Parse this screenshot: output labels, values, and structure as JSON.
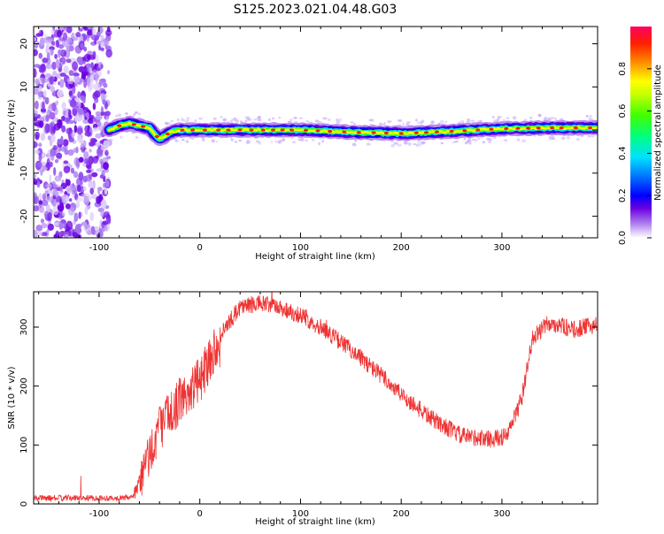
{
  "page_title": "S125.2023.021.04.48.G03",
  "chart_data": [
    {
      "type": "heatmap",
      "xlabel": "Height of straight line (km)",
      "ylabel": "Frequency (Hz)",
      "xlim": [
        -165,
        395
      ],
      "ylim": [
        -25,
        24
      ],
      "x_ticks": [
        -100,
        0,
        100,
        200,
        300
      ],
      "y_ticks": [
        -20,
        -10,
        0,
        10,
        20
      ],
      "colorbar": {
        "label": "Normalized spectral amplitude",
        "range": [
          0,
          1
        ],
        "ticks": [
          "0.0",
          "0.2",
          "0.4",
          "0.6",
          "0.8"
        ],
        "colormap": "rainbow"
      },
      "noise_region": {
        "x_from": -165,
        "x_to": -90,
        "description_level": "low amplitude scattered"
      },
      "ridge": {
        "x": [
          -90,
          -80,
          -70,
          -60,
          -50,
          -45,
          -40,
          -35,
          -30,
          -20,
          0,
          50,
          100,
          150,
          200,
          250,
          300,
          350,
          395
        ],
        "freq": [
          0,
          1,
          1.5,
          1,
          0.5,
          -1,
          -2,
          -1.5,
          -0.5,
          0,
          0,
          0,
          0,
          -0.5,
          -0.8,
          -0.3,
          0.3,
          0.5,
          0.5
        ],
        "peak_amplitude": 0.95
      },
      "grid": false
    },
    {
      "type": "line",
      "xlabel": "Height of straight line (km)",
      "ylabel": "SNR (10 * v/v)",
      "xlim": [
        -165,
        395
      ],
      "ylim": [
        0,
        360
      ],
      "x_ticks": [
        -100,
        0,
        100,
        200,
        300
      ],
      "y_ticks": [
        0,
        100,
        200,
        300
      ],
      "color": "#ee3333",
      "envelope": {
        "x": [
          -165,
          -140,
          -100,
          -80,
          -65,
          -55,
          -40,
          -20,
          0,
          20,
          40,
          60,
          80,
          100,
          120,
          150,
          180,
          200,
          230,
          260,
          290,
          305,
          320,
          330,
          345,
          355,
          370,
          395
        ],
        "y": [
          10,
          10,
          10,
          10,
          12,
          60,
          130,
          175,
          210,
          285,
          335,
          340,
          333,
          320,
          300,
          262,
          218,
          185,
          145,
          115,
          110,
          115,
          180,
          280,
          305,
          305,
          295,
          305
        ]
      },
      "noise_amplitude": 15,
      "grid": false
    }
  ]
}
